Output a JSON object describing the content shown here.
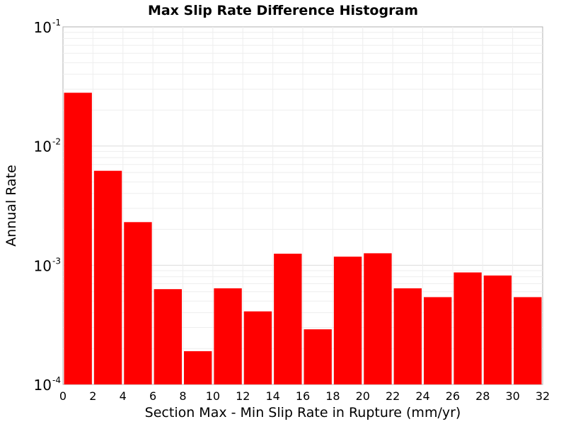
{
  "chart_data": {
    "type": "bar",
    "title": "Max Slip Rate Difference Histogram",
    "xlabel": "Section Max - Min Slip Rate in Rupture (mm/yr)",
    "ylabel": "Annual Rate",
    "yscale": "log",
    "ylim": [
      0.0001,
      0.1
    ],
    "xlim": [
      0,
      32
    ],
    "bin_width": 2,
    "bar_color": "#ff0000",
    "grid": true,
    "x_ticks": [
      "0",
      "2",
      "4",
      "6",
      "8",
      "10",
      "12",
      "14",
      "16",
      "18",
      "20",
      "22",
      "24",
      "26",
      "28",
      "30",
      "32"
    ],
    "y_ticks": [
      {
        "base": "10",
        "exp": "-4"
      },
      {
        "base": "10",
        "exp": "-3"
      },
      {
        "base": "10",
        "exp": "-2"
      },
      {
        "base": "10",
        "exp": "-1"
      }
    ],
    "bins": [
      {
        "x_start": 0,
        "x_end": 2,
        "value": 0.028
      },
      {
        "x_start": 2,
        "x_end": 4,
        "value": 0.0062
      },
      {
        "x_start": 4,
        "x_end": 6,
        "value": 0.0023
      },
      {
        "x_start": 6,
        "x_end": 8,
        "value": 0.00063
      },
      {
        "x_start": 8,
        "x_end": 10,
        "value": 0.00019
      },
      {
        "x_start": 10,
        "x_end": 12,
        "value": 0.00064
      },
      {
        "x_start": 12,
        "x_end": 14,
        "value": 0.00041
      },
      {
        "x_start": 14,
        "x_end": 16,
        "value": 0.00125
      },
      {
        "x_start": 16,
        "x_end": 18,
        "value": 0.00029
      },
      {
        "x_start": 18,
        "x_end": 20,
        "value": 0.00118
      },
      {
        "x_start": 20,
        "x_end": 22,
        "value": 0.00126
      },
      {
        "x_start": 22,
        "x_end": 24,
        "value": 0.00064
      },
      {
        "x_start": 24,
        "x_end": 26,
        "value": 0.00054
      },
      {
        "x_start": 26,
        "x_end": 28,
        "value": 0.00087
      },
      {
        "x_start": 28,
        "x_end": 30,
        "value": 0.00082
      },
      {
        "x_start": 30,
        "x_end": 32,
        "value": 0.00054
      }
    ]
  }
}
